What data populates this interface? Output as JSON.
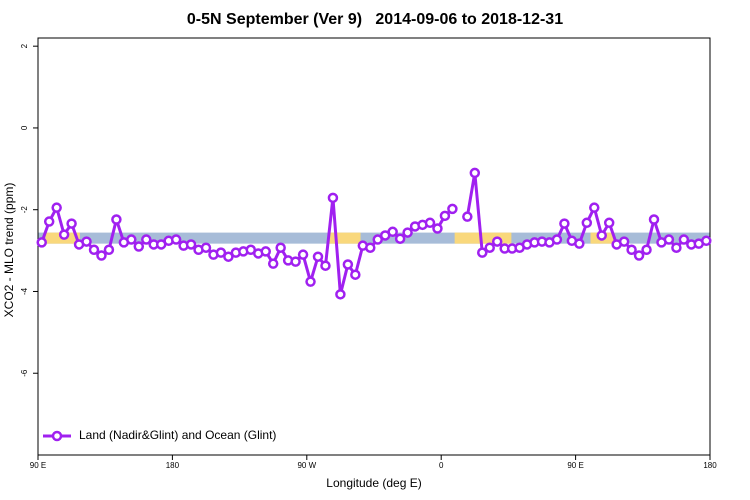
{
  "chart_data": {
    "type": "line",
    "title": "0-5N September (Ver 9)   2014-09-06 to 2018-12-31",
    "xlabel": "Longitude (deg E)",
    "ylabel": "XCO2 - MLO trend (ppm)",
    "xlim": [
      90,
      540
    ],
    "ylim": [
      -8,
      2.2
    ],
    "xticks": [
      {
        "value": 90,
        "label": "90 E"
      },
      180,
      {
        "value": 270,
        "label": "90 W"
      },
      {
        "value": 360,
        "label": "0"
      },
      {
        "value": 450,
        "label": "90 E"
      },
      {
        "value": 540,
        "label": "180"
      }
    ],
    "yticks": [
      2,
      0,
      -2,
      -4,
      -6
    ],
    "grid": false,
    "legend": "bottom-left",
    "band_range": [
      -2.83,
      -2.56
    ],
    "band_color": "#a7bcd8",
    "land_color": "#f9d87c",
    "land_regions": [
      [
        95,
        118
      ],
      [
        284,
        306
      ],
      [
        369,
        407
      ],
      [
        460,
        476
      ]
    ],
    "x": [
      92.5,
      97.5,
      102.5,
      107.5,
      112.5,
      117.5,
      122.5,
      127.5,
      132.5,
      137.5,
      142.5,
      147.5,
      152.5,
      157.5,
      162.5,
      167.5,
      172.5,
      177.5,
      182.5,
      187.5,
      192.5,
      197.5,
      202.5,
      207.5,
      212.5,
      217.5,
      222.5,
      227.5,
      232.5,
      237.5,
      242.5,
      247.5,
      252.5,
      257.5,
      262.5,
      267.5,
      272.5,
      277.5,
      282.5,
      287.5,
      292.5,
      297.5,
      302.5,
      307.5,
      312.5,
      317.5,
      322.5,
      327.5,
      332.5,
      337.5,
      342.5,
      347.5,
      352.5,
      357.5,
      362.5,
      367.5,
      372.5,
      377.5,
      382.5,
      387.5,
      392.5,
      397.5,
      402.5,
      407.5,
      412.5,
      417.5,
      422.5,
      427.5,
      432.5,
      437.5,
      442.5,
      447.5,
      452.5,
      457.5,
      462.5,
      467.5,
      472.5,
      477.5,
      482.5,
      487.5,
      492.5,
      497.5,
      502.5,
      507.5,
      512.5,
      517.5,
      522.5,
      527.5,
      532.5,
      537.5
    ],
    "series": [
      {
        "name": "Land (Nadir&Glint) and Ocean (Glint)",
        "color": "#a020f0",
        "values": [
          -2.8,
          -2.29,
          -1.95,
          -2.61,
          -2.34,
          -2.85,
          -2.78,
          -2.98,
          -3.12,
          -2.98,
          -2.24,
          -2.8,
          -2.73,
          -2.9,
          -2.73,
          -2.85,
          -2.85,
          -2.76,
          -2.73,
          -2.88,
          -2.85,
          -2.98,
          -2.93,
          -3.1,
          -3.05,
          -3.15,
          -3.05,
          -3.02,
          -2.98,
          -3.07,
          -3.02,
          -3.32,
          -2.93,
          -3.24,
          -3.27,
          -3.1,
          -3.76,
          -3.15,
          -3.37,
          -1.71,
          -4.07,
          -3.34,
          -3.59,
          -2.88,
          -2.93,
          -2.73,
          -2.63,
          -2.54,
          -2.71,
          -2.56,
          -2.41,
          -2.37,
          -2.32,
          -2.46,
          -2.15,
          -1.98,
          null,
          -2.17,
          -1.1,
          -3.05,
          -2.93,
          -2.78,
          -2.95,
          -2.95,
          -2.93,
          -2.85,
          -2.8,
          -2.78,
          -2.8,
          -2.73,
          -2.34,
          -2.76,
          -2.83,
          -2.32,
          -1.95,
          -2.63,
          -2.32,
          -2.85,
          -2.78,
          -2.98,
          -3.12,
          -2.98,
          -2.24,
          -2.8,
          -2.73,
          -2.93,
          -2.73,
          -2.85,
          -2.83,
          -2.76
        ]
      }
    ]
  }
}
